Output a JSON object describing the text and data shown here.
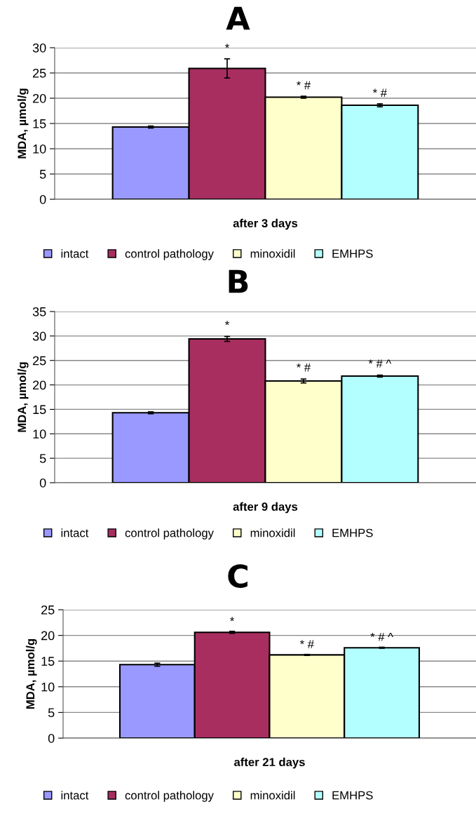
{
  "chart_data": [
    {
      "type": "bar",
      "title": "A",
      "ylabel": "MDA, µmol/g",
      "categories": [
        "after 3 days"
      ],
      "ylim": [
        0,
        30
      ],
      "yticks": [
        0,
        5,
        10,
        15,
        20,
        25,
        30
      ],
      "grid": "y",
      "legend": "bottom",
      "series": [
        {
          "name": "intact",
          "color": "#9999ff",
          "values": [
            14.3
          ],
          "errors": [
            0.2
          ],
          "value_labels": [
            null
          ]
        },
        {
          "name": "control pathology",
          "color": "#a82e60",
          "values": [
            25.9
          ],
          "errors": [
            1.9
          ],
          "value_labels": [
            "*"
          ]
        },
        {
          "name": "minoxidil",
          "color": "#ffffcc",
          "values": [
            20.2
          ],
          "errors": [
            0.2
          ],
          "value_labels": [
            "* #"
          ]
        },
        {
          "name": "EMHPS",
          "color": "#b3ffff",
          "values": [
            18.6
          ],
          "errors": [
            0.3
          ],
          "value_labels": [
            "* #"
          ]
        }
      ]
    },
    {
      "type": "bar",
      "title": "B",
      "ylabel": "MDA, µmol/g",
      "categories": [
        "after 9 days"
      ],
      "ylim": [
        0,
        35
      ],
      "yticks": [
        0,
        5,
        10,
        15,
        20,
        25,
        30,
        35
      ],
      "grid": "y",
      "legend": "bottom",
      "series": [
        {
          "name": "intact",
          "color": "#9999ff",
          "values": [
            14.3
          ],
          "errors": [
            0.2
          ],
          "value_labels": [
            null
          ]
        },
        {
          "name": "control pathology",
          "color": "#a82e60",
          "values": [
            29.4
          ],
          "errors": [
            0.5
          ],
          "value_labels": [
            "*"
          ]
        },
        {
          "name": "minoxidil",
          "color": "#ffffcc",
          "values": [
            20.8
          ],
          "errors": [
            0.4
          ],
          "value_labels": [
            "* #"
          ]
        },
        {
          "name": "EMHPS",
          "color": "#b3ffff",
          "values": [
            21.8
          ],
          "errors": [
            0.2
          ],
          "value_labels": [
            "* # ^"
          ]
        }
      ]
    },
    {
      "type": "bar",
      "title": "C",
      "ylabel": "MDA, µmol/g",
      "categories": [
        "after 21 days"
      ],
      "ylim": [
        0,
        25
      ],
      "yticks": [
        0,
        5,
        10,
        15,
        20,
        25
      ],
      "grid": "y",
      "legend": "bottom",
      "series": [
        {
          "name": "intact",
          "color": "#9999ff",
          "values": [
            14.3
          ],
          "errors": [
            0.3
          ],
          "value_labels": [
            null
          ]
        },
        {
          "name": "control pathology",
          "color": "#a82e60",
          "values": [
            20.6
          ],
          "errors": [
            0.2
          ],
          "value_labels": [
            "*"
          ]
        },
        {
          "name": "minoxidil",
          "color": "#ffffcc",
          "values": [
            16.2
          ],
          "errors": [
            0.1
          ],
          "value_labels": [
            "* #"
          ]
        },
        {
          "name": "EMHPS",
          "color": "#b3ffff",
          "values": [
            17.6
          ],
          "errors": [
            0.1
          ],
          "value_labels": [
            "* # ^"
          ]
        }
      ]
    }
  ]
}
